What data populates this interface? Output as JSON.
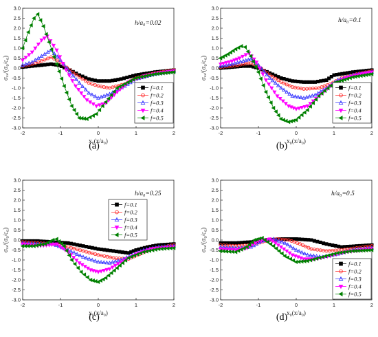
{
  "figure": {
    "panels": [
      "a",
      "b",
      "c",
      "d"
    ]
  },
  "chart_data": [
    {
      "type": "scatter",
      "panel_caption": "(a)",
      "annotation": "h/a₀=0.02",
      "xlabel": "x₀(x/a₀)",
      "ylabel": "σₓₓ/(σ₀/c₀)",
      "xlim": [
        -2,
        2
      ],
      "ylim": [
        -3.0,
        3.0
      ],
      "xticks": [
        "-2",
        "-1",
        "0",
        "1",
        "2"
      ],
      "yticks": [
        "-3.0",
        "-2.5",
        "-2.0",
        "-1.5",
        "-1.0",
        "-0.5",
        "0.0",
        "0.5",
        "1.0",
        "1.5",
        "2.0",
        "2.5",
        "3.0"
      ],
      "legend_position": "lower-right",
      "series": [
        {
          "name": "f=0.1",
          "marker": "square",
          "color": "#000000",
          "x": [
            -2,
            -1.75,
            -1.5,
            -1.25,
            -1.05,
            -0.75,
            -0.5,
            -0.25,
            0,
            0.3,
            0.6,
            1,
            1.5,
            2
          ],
          "y": [
            0.05,
            0.1,
            0.15,
            0.2,
            0.15,
            -0.1,
            -0.35,
            -0.55,
            -0.65,
            -0.65,
            -0.55,
            -0.35,
            -0.2,
            -0.1
          ]
        },
        {
          "name": "f=0.2",
          "marker": "circle",
          "color": "#ff3030",
          "x": [
            -2,
            -1.75,
            -1.5,
            -1.25,
            -1.0,
            -0.75,
            -0.5,
            -0.25,
            0,
            0.3,
            0.7,
            1.0,
            1.5,
            2
          ],
          "y": [
            0.1,
            0.2,
            0.35,
            0.55,
            0.3,
            -0.1,
            -0.45,
            -0.75,
            -0.9,
            -1.0,
            -0.8,
            -0.5,
            -0.25,
            -0.1
          ]
        },
        {
          "name": "f=0.3",
          "marker": "triangle",
          "color": "#3b3bff",
          "x": [
            -2,
            -1.75,
            -1.5,
            -1.25,
            -1.0,
            -0.75,
            -0.5,
            -0.25,
            0,
            0.3,
            0.7,
            1.0,
            1.5,
            2
          ],
          "y": [
            0.15,
            0.3,
            0.6,
            0.9,
            0.4,
            -0.2,
            -0.75,
            -1.25,
            -1.5,
            -1.3,
            -0.9,
            -0.55,
            -0.3,
            -0.15
          ]
        },
        {
          "name": "f=0.4",
          "marker": "down-triangle",
          "color": "#ff00ff",
          "x": [
            -2,
            -1.75,
            -1.5,
            -1.35,
            -1.1,
            -0.85,
            -0.6,
            -0.3,
            -0.05,
            0.2,
            0.5,
            0.8,
            1.2,
            1.6,
            2
          ],
          "y": [
            0.4,
            0.8,
            1.4,
            1.6,
            0.9,
            -0.1,
            -0.9,
            -1.6,
            -1.9,
            -1.75,
            -1.2,
            -0.7,
            -0.4,
            -0.25,
            -0.15
          ]
        },
        {
          "name": "f=0.5",
          "marker": "left-triangle",
          "color": "#008000",
          "x": [
            -2,
            -1.85,
            -1.7,
            -1.6,
            -1.45,
            -1.3,
            -1.1,
            -0.9,
            -0.7,
            -0.5,
            -0.3,
            -0.05,
            0.2,
            0.5,
            1.0,
            1.5,
            2
          ],
          "y": [
            1.0,
            1.8,
            2.5,
            2.7,
            2.1,
            1.3,
            0.2,
            -0.9,
            -1.9,
            -2.5,
            -2.55,
            -2.3,
            -1.7,
            -1.0,
            -0.5,
            -0.3,
            -0.2
          ]
        }
      ]
    },
    {
      "type": "scatter",
      "panel_caption": "(b)",
      "annotation": "h/a₀=0.1",
      "xlabel": "x₀(x/a₀)",
      "ylabel": "σₓₓ/(σ₀/c₀)",
      "xlim": [
        -2,
        2
      ],
      "ylim": [
        -3.0,
        3.0
      ],
      "xticks": [
        "-2",
        "-1",
        "0",
        "1",
        "2"
      ],
      "yticks": [
        "-3.0",
        "-2.5",
        "-2.0",
        "-1.5",
        "-1.0",
        "-0.5",
        "0.0",
        "0.5",
        "1.0",
        "1.5",
        "2.0",
        "2.5",
        "3.0"
      ],
      "legend_position": "lower-right",
      "series": [
        {
          "name": "f=0.1",
          "marker": "square",
          "color": "#000000",
          "x": [
            -2,
            -1.7,
            -1.4,
            -1.2,
            -1.0,
            -0.7,
            -0.4,
            -0.1,
            0.2,
            0.5,
            0.8,
            1.0,
            1.5,
            2
          ],
          "y": [
            0.0,
            0.05,
            0.1,
            0.1,
            0.0,
            -0.25,
            -0.5,
            -0.65,
            -0.7,
            -0.7,
            -0.6,
            -0.35,
            -0.2,
            -0.1
          ]
        },
        {
          "name": "f=0.2",
          "marker": "circle",
          "color": "#ff3030",
          "x": [
            -2,
            -1.7,
            -1.4,
            -1.2,
            -1.0,
            -0.7,
            -0.4,
            -0.1,
            0.2,
            0.6,
            0.9,
            1.2,
            1.6,
            2
          ],
          "y": [
            0.05,
            0.1,
            0.2,
            0.25,
            0.1,
            -0.35,
            -0.7,
            -0.95,
            -1.05,
            -1.0,
            -0.8,
            -0.5,
            -0.3,
            -0.15
          ]
        },
        {
          "name": "f=0.3",
          "marker": "triangle",
          "color": "#3b3bff",
          "x": [
            -2,
            -1.7,
            -1.4,
            -1.2,
            -1.0,
            -0.7,
            -0.4,
            -0.1,
            0.2,
            0.5,
            0.8,
            1.1,
            1.5,
            2
          ],
          "y": [
            0.1,
            0.2,
            0.35,
            0.45,
            0.15,
            -0.5,
            -1.0,
            -1.4,
            -1.5,
            -1.35,
            -1.0,
            -0.6,
            -0.35,
            -0.2
          ]
        },
        {
          "name": "f=0.4",
          "marker": "down-triangle",
          "color": "#ff00ff",
          "x": [
            -2,
            -1.7,
            -1.5,
            -1.25,
            -1.05,
            -0.8,
            -0.5,
            -0.2,
            0.0,
            0.3,
            0.6,
            0.9,
            1.3,
            1.7,
            2
          ],
          "y": [
            0.2,
            0.35,
            0.5,
            0.75,
            0.3,
            -0.6,
            -1.4,
            -1.9,
            -2.05,
            -1.9,
            -1.4,
            -0.9,
            -0.5,
            -0.3,
            -0.2
          ]
        },
        {
          "name": "f=0.5",
          "marker": "left-triangle",
          "color": "#008000",
          "x": [
            -2,
            -1.8,
            -1.6,
            -1.45,
            -1.35,
            -1.2,
            -1.0,
            -0.8,
            -0.6,
            -0.4,
            -0.2,
            0.0,
            0.3,
            0.6,
            1.0,
            1.5,
            2
          ],
          "y": [
            0.5,
            0.7,
            0.95,
            1.1,
            1.05,
            0.6,
            -0.2,
            -1.2,
            -2.0,
            -2.55,
            -2.7,
            -2.6,
            -2.1,
            -1.4,
            -0.75,
            -0.45,
            -0.3
          ]
        }
      ]
    },
    {
      "type": "scatter",
      "panel_caption": "(c)",
      "annotation": "h/a₀=0.25",
      "xlabel": "x₀(x/a₀)",
      "ylabel": "σₓₓ/(σ₀/c₀)",
      "xlim": [
        -2,
        2
      ],
      "ylim": [
        -3.0,
        3.0
      ],
      "xticks": [
        "-2",
        "-1",
        "0",
        "1",
        "2"
      ],
      "yticks": [
        "-3.0",
        "-2.5",
        "-2.0",
        "-1.5",
        "-1.0",
        "-0.5",
        "0.0",
        "0.5",
        "1.0",
        "1.5",
        "2.0",
        "2.5",
        "3.0"
      ],
      "legend_position": "upper-right",
      "series": [
        {
          "name": "f=0.1",
          "marker": "square",
          "color": "#000000",
          "x": [
            -2,
            -1.6,
            -1.2,
            -0.8,
            -0.4,
            0.0,
            0.4,
            0.8,
            1.0,
            1.3,
            1.6,
            2
          ],
          "y": [
            -0.05,
            -0.05,
            -0.1,
            -0.15,
            -0.3,
            -0.45,
            -0.55,
            -0.65,
            -0.5,
            -0.35,
            -0.25,
            -0.2
          ]
        },
        {
          "name": "f=0.2",
          "marker": "circle",
          "color": "#ff3030",
          "x": [
            -2,
            -1.6,
            -1.2,
            -0.8,
            -0.4,
            0.0,
            0.4,
            0.8,
            1.1,
            1.4,
            1.7,
            2
          ],
          "y": [
            -0.1,
            -0.15,
            -0.2,
            -0.35,
            -0.55,
            -0.75,
            -0.9,
            -0.95,
            -0.7,
            -0.45,
            -0.35,
            -0.25
          ]
        },
        {
          "name": "f=0.3",
          "marker": "triangle",
          "color": "#3b3bff",
          "x": [
            -2,
            -1.6,
            -1.2,
            -0.8,
            -0.4,
            0.0,
            0.3,
            0.6,
            0.9,
            1.2,
            1.6,
            2
          ],
          "y": [
            -0.15,
            -0.2,
            -0.2,
            -0.5,
            -0.85,
            -1.1,
            -1.15,
            -1.0,
            -0.75,
            -0.5,
            -0.35,
            -0.3
          ]
        },
        {
          "name": "f=0.4",
          "marker": "down-triangle",
          "color": "#ff00ff",
          "x": [
            -2,
            -1.6,
            -1.3,
            -1.1,
            -0.8,
            -0.5,
            -0.2,
            0.0,
            0.3,
            0.6,
            1.0,
            1.4,
            1.7,
            2
          ],
          "y": [
            -0.2,
            -0.3,
            -0.25,
            -0.2,
            -0.6,
            -1.15,
            -1.5,
            -1.6,
            -1.45,
            -1.1,
            -0.7,
            -0.45,
            -0.4,
            -0.35
          ]
        },
        {
          "name": "f=0.5",
          "marker": "left-triangle",
          "color": "#008000",
          "x": [
            -2,
            -1.7,
            -1.4,
            -1.2,
            -1.1,
            -0.9,
            -0.7,
            -0.45,
            -0.2,
            0.0,
            0.2,
            0.5,
            0.8,
            1.2,
            1.6,
            2
          ],
          "y": [
            -0.3,
            -0.3,
            -0.2,
            0.0,
            0.05,
            -0.3,
            -1.0,
            -1.6,
            -2.0,
            -2.1,
            -1.9,
            -1.4,
            -0.9,
            -0.6,
            -0.45,
            -0.4
          ]
        }
      ]
    },
    {
      "type": "scatter",
      "panel_caption": "(d)",
      "annotation": "h/a₀=0.5",
      "xlabel": "x₀(x/a₀)",
      "ylabel": "σₓₓ/(σ₀/c₀)",
      "xlim": [
        -2,
        2
      ],
      "ylim": [
        -3.0,
        3.0
      ],
      "xticks": [
        "-2",
        "-1",
        "0",
        "1",
        "2"
      ],
      "yticks": [
        "-3.0",
        "-2.5",
        "-2.0",
        "-1.5",
        "-1.0",
        "-0.5",
        "0.0",
        "0.5",
        "1.0",
        "1.5",
        "2.0",
        "2.5",
        "3.0"
      ],
      "legend_position": "lower-right",
      "series": [
        {
          "name": "f=0.1",
          "marker": "square",
          "color": "#000000",
          "x": [
            -2,
            -1.6,
            -1.2,
            -0.8,
            -0.4,
            0.0,
            0.4,
            0.8,
            1.2,
            1.6,
            2
          ],
          "y": [
            -0.15,
            -0.15,
            -0.1,
            0.0,
            0.05,
            0.05,
            0.0,
            -0.2,
            -0.35,
            -0.3,
            -0.25
          ]
        },
        {
          "name": "f=0.2",
          "marker": "circle",
          "color": "#ff3030",
          "x": [
            -2,
            -1.6,
            -1.2,
            -0.8,
            -0.5,
            -0.2,
            0.1,
            0.4,
            0.8,
            1.2,
            1.6,
            2
          ],
          "y": [
            -0.25,
            -0.3,
            -0.25,
            -0.05,
            0.05,
            0.0,
            -0.2,
            -0.45,
            -0.55,
            -0.5,
            -0.4,
            -0.3
          ]
        },
        {
          "name": "f=0.3",
          "marker": "triangle",
          "color": "#3b3bff",
          "x": [
            -2,
            -1.6,
            -1.2,
            -0.9,
            -0.6,
            -0.3,
            0.0,
            0.3,
            0.7,
            1.1,
            1.5,
            2
          ],
          "y": [
            -0.35,
            -0.4,
            -0.35,
            -0.05,
            0.05,
            -0.15,
            -0.5,
            -0.75,
            -0.85,
            -0.7,
            -0.5,
            -0.4
          ]
        },
        {
          "name": "f=0.4",
          "marker": "down-triangle",
          "color": "#ff00ff",
          "x": [
            -2,
            -1.6,
            -1.3,
            -1.0,
            -0.7,
            -0.4,
            -0.1,
            0.2,
            0.5,
            0.9,
            1.3,
            1.7,
            2
          ],
          "y": [
            -0.45,
            -0.5,
            -0.4,
            -0.05,
            0.05,
            -0.35,
            -0.75,
            -0.95,
            -0.95,
            -0.8,
            -0.6,
            -0.5,
            -0.45
          ]
        },
        {
          "name": "f=0.5",
          "marker": "left-triangle",
          "color": "#008000",
          "x": [
            -2,
            -1.6,
            -1.3,
            -1.1,
            -0.9,
            -0.6,
            -0.3,
            0.0,
            0.3,
            0.7,
            1.1,
            1.5,
            2
          ],
          "y": [
            -0.55,
            -0.6,
            -0.35,
            0.0,
            0.1,
            -0.3,
            -0.8,
            -1.1,
            -1.05,
            -0.85,
            -0.65,
            -0.55,
            -0.5
          ]
        }
      ]
    }
  ]
}
